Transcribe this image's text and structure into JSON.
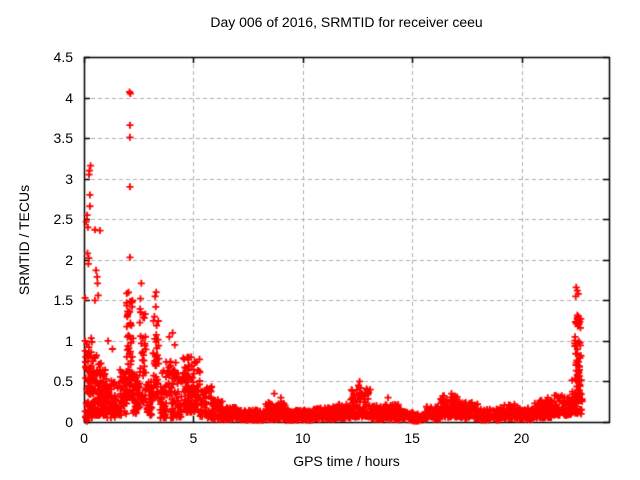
{
  "chart_data": {
    "type": "scatter",
    "title": "Day 006 of 2016, SRMTID for receiver ceeu",
    "xlabel": "GPS time / hours",
    "ylabel": "SRMTID / TECUs",
    "xlim": [
      0,
      24
    ],
    "ylim": [
      0,
      4.5
    ],
    "xtick_values": [
      0,
      5,
      10,
      15,
      20
    ],
    "xtick_labels": [
      "0",
      "5",
      "10",
      "15",
      "20"
    ],
    "ytick_values": [
      0,
      0.5,
      1,
      1.5,
      2,
      2.5,
      3,
      3.5,
      4,
      4.5
    ],
    "ytick_labels": [
      "0",
      "0.5",
      "1",
      "1.5",
      "2",
      "2.5",
      "3",
      "3.5",
      "4",
      "4.5"
    ],
    "grid": true,
    "legend": "none",
    "marker": {
      "shape": "plus",
      "size": 7,
      "color": "#ff0000"
    },
    "grid_color": "#b0b0b0",
    "axis_color": "#000000",
    "background": "#ffffff",
    "seed": 20160106,
    "points": [
      [
        0.13,
        0.01
      ],
      [
        0.07,
        0.74
      ],
      [
        0.05,
        1.0
      ],
      [
        0.05,
        1.53
      ],
      [
        0.16,
        2.08
      ],
      [
        0.2,
        1.95
      ],
      [
        0.22,
        2.02
      ],
      [
        0.1,
        2.47
      ],
      [
        0.14,
        2.55
      ],
      [
        0.18,
        2.4
      ],
      [
        0.23,
        3.05
      ],
      [
        0.25,
        3.1
      ],
      [
        0.3,
        3.16
      ],
      [
        0.27,
        2.8
      ],
      [
        0.27,
        2.66
      ],
      [
        0.5,
        2.37
      ],
      [
        0.73,
        2.36
      ],
      [
        0.55,
        1.87
      ],
      [
        0.6,
        1.79
      ],
      [
        0.62,
        1.71
      ],
      [
        0.65,
        1.56
      ],
      [
        0.5,
        1.5
      ],
      [
        1.1,
        1.0
      ],
      [
        1.3,
        0.9
      ],
      [
        1.95,
        1.47
      ],
      [
        2.08,
        4.07
      ],
      [
        2.12,
        4.05
      ],
      [
        2.1,
        3.66
      ],
      [
        2.1,
        3.51
      ],
      [
        2.1,
        2.9
      ],
      [
        2.1,
        2.03
      ],
      [
        2.62,
        1.71
      ],
      [
        2.58,
        1.52
      ],
      [
        3.25,
        1.55
      ],
      [
        3.3,
        1.6
      ],
      [
        3.28,
        1.42
      ],
      [
        3.22,
        1.3
      ],
      [
        3.9,
        1.05
      ],
      [
        4.05,
        1.1
      ],
      [
        4.15,
        0.95
      ],
      [
        4.9,
        0.8
      ],
      [
        8.7,
        0.35
      ],
      [
        9.0,
        0.3
      ],
      [
        12.55,
        0.45
      ],
      [
        12.6,
        0.5
      ],
      [
        12.65,
        0.42
      ],
      [
        13.9,
        0.3
      ],
      [
        15.2,
        0.01
      ],
      [
        16.8,
        0.35
      ],
      [
        21.2,
        0.3
      ],
      [
        22.5,
        1.66
      ],
      [
        22.55,
        1.62
      ],
      [
        22.48,
        1.55
      ],
      [
        22.6,
        1.58
      ],
      [
        22.5,
        1.22
      ],
      [
        22.55,
        1.28
      ],
      [
        22.6,
        1.3
      ],
      [
        22.62,
        1.25
      ],
      [
        22.58,
        1.18
      ],
      [
        22.45,
        1.05
      ],
      [
        22.5,
        0.97
      ],
      [
        22.65,
        0.68
      ],
      [
        22.6,
        0.62
      ],
      [
        22.55,
        0.58
      ]
    ],
    "noise_bands": [
      {
        "x0": 0.05,
        "x1": 0.45,
        "y0": 0.05,
        "y1": 1.05,
        "n": 90,
        "skew": 1.6
      },
      {
        "x0": 0.45,
        "x1": 1.05,
        "y0": 0.08,
        "y1": 0.82,
        "n": 110,
        "skew": 1.4
      },
      {
        "x0": 1.05,
        "x1": 1.6,
        "y0": 0.05,
        "y1": 0.55,
        "n": 60,
        "skew": 1.3
      },
      {
        "x0": 1.6,
        "x1": 1.95,
        "y0": 0.08,
        "y1": 0.65,
        "n": 45,
        "skew": 1.3
      },
      {
        "x0": 1.95,
        "x1": 2.25,
        "y0": 0.3,
        "y1": 1.6,
        "n": 70,
        "skew": 1.8
      },
      {
        "x0": 2.25,
        "x1": 2.55,
        "y0": 0.08,
        "y1": 0.6,
        "n": 40,
        "skew": 1.3
      },
      {
        "x0": 2.55,
        "x1": 2.85,
        "y0": 0.25,
        "y1": 1.4,
        "n": 45,
        "skew": 1.8
      },
      {
        "x0": 2.85,
        "x1": 3.15,
        "y0": 0.08,
        "y1": 0.5,
        "n": 35,
        "skew": 1.2
      },
      {
        "x0": 3.15,
        "x1": 3.45,
        "y0": 0.3,
        "y1": 1.25,
        "n": 40,
        "skew": 1.6
      },
      {
        "x0": 3.45,
        "x1": 4.45,
        "y0": 0.05,
        "y1": 0.75,
        "n": 110,
        "skew": 1.8
      },
      {
        "x0": 4.45,
        "x1": 5.3,
        "y0": 0.12,
        "y1": 0.8,
        "n": 110,
        "skew": 1.5
      },
      {
        "x0": 5.3,
        "x1": 5.85,
        "y0": 0.05,
        "y1": 0.45,
        "n": 55,
        "skew": 1.4
      },
      {
        "x0": 5.85,
        "x1": 6.35,
        "y0": 0.03,
        "y1": 0.28,
        "n": 50,
        "skew": 1.3
      },
      {
        "x0": 6.35,
        "x1": 7.0,
        "y0": 0.03,
        "y1": 0.18,
        "n": 80,
        "skew": 1.2
      },
      {
        "x0": 7.0,
        "x1": 8.3,
        "y0": 0.02,
        "y1": 0.15,
        "n": 150,
        "skew": 1.2
      },
      {
        "x0": 8.3,
        "x1": 9.2,
        "y0": 0.03,
        "y1": 0.24,
        "n": 105,
        "skew": 1.5
      },
      {
        "x0": 9.2,
        "x1": 10.5,
        "y0": 0.02,
        "y1": 0.15,
        "n": 150,
        "skew": 1.2
      },
      {
        "x0": 10.5,
        "x1": 11.4,
        "y0": 0.03,
        "y1": 0.18,
        "n": 100,
        "skew": 1.2
      },
      {
        "x0": 11.4,
        "x1": 12.2,
        "y0": 0.04,
        "y1": 0.22,
        "n": 90,
        "skew": 1.3
      },
      {
        "x0": 12.2,
        "x1": 13.1,
        "y0": 0.06,
        "y1": 0.42,
        "n": 100,
        "skew": 1.7
      },
      {
        "x0": 13.1,
        "x1": 14.4,
        "y0": 0.03,
        "y1": 0.22,
        "n": 140,
        "skew": 1.4
      },
      {
        "x0": 14.4,
        "x1": 15.05,
        "y0": 0.02,
        "y1": 0.13,
        "n": 60,
        "skew": 1.2
      },
      {
        "x0": 15.05,
        "x1": 15.6,
        "y0": 0.01,
        "y1": 0.1,
        "n": 45,
        "skew": 1.2
      },
      {
        "x0": 15.6,
        "x1": 16.3,
        "y0": 0.03,
        "y1": 0.2,
        "n": 75,
        "skew": 1.3
      },
      {
        "x0": 16.3,
        "x1": 17.2,
        "y0": 0.06,
        "y1": 0.33,
        "n": 100,
        "skew": 1.5
      },
      {
        "x0": 17.2,
        "x1": 18.0,
        "y0": 0.04,
        "y1": 0.25,
        "n": 80,
        "skew": 1.4
      },
      {
        "x0": 18.0,
        "x1": 19.0,
        "y0": 0.02,
        "y1": 0.16,
        "n": 100,
        "skew": 1.2
      },
      {
        "x0": 19.0,
        "x1": 19.7,
        "y0": 0.04,
        "y1": 0.22,
        "n": 70,
        "skew": 1.3
      },
      {
        "x0": 19.7,
        "x1": 20.6,
        "y0": 0.03,
        "y1": 0.18,
        "n": 85,
        "skew": 1.2
      },
      {
        "x0": 20.6,
        "x1": 21.5,
        "y0": 0.05,
        "y1": 0.27,
        "n": 90,
        "skew": 1.4
      },
      {
        "x0": 21.5,
        "x1": 22.3,
        "y0": 0.08,
        "y1": 0.33,
        "n": 85,
        "skew": 1.3
      },
      {
        "x0": 22.3,
        "x1": 22.78,
        "y0": 0.1,
        "y1": 0.55,
        "n": 55,
        "skew": 1.2
      },
      {
        "x0": 22.42,
        "x1": 22.72,
        "y0": 0.55,
        "y1": 1.32,
        "n": 35,
        "skew": 1.0
      }
    ]
  }
}
